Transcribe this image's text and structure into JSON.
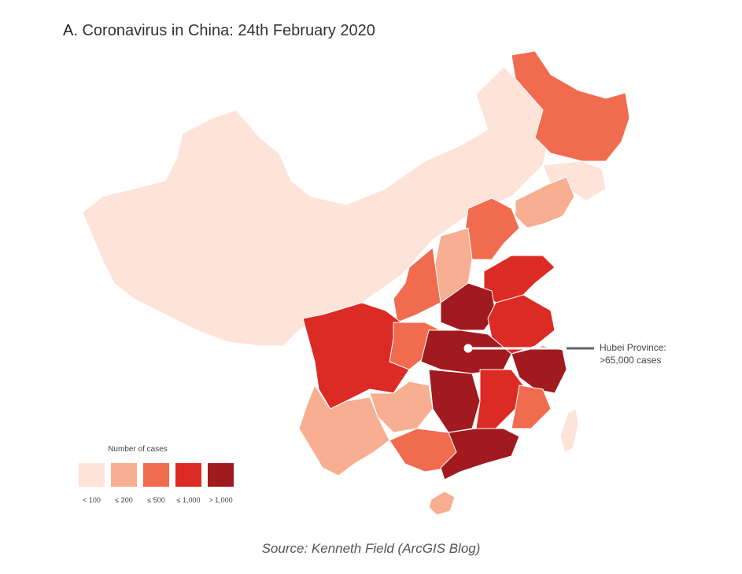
{
  "title": {
    "letter": "A.",
    "text": "Coronavirus in China: 24th February 2020"
  },
  "legend": {
    "title": "Number of cases",
    "classes": [
      {
        "label": "< 100",
        "color": "#fde3d8"
      },
      {
        "label": "≤ 200",
        "color": "#f8ae90"
      },
      {
        "label": "≤ 500",
        "color": "#f16b4f"
      },
      {
        "label": "≤ 1,000",
        "color": "#dc2a24"
      },
      {
        "label": "> 1,000",
        "color": "#a11a1f"
      }
    ]
  },
  "callout": {
    "line1": "Hubei Province:",
    "line2": ">65,000 cases"
  },
  "source": "Source: Kenneth Field (ArcGIS Blog)"
}
